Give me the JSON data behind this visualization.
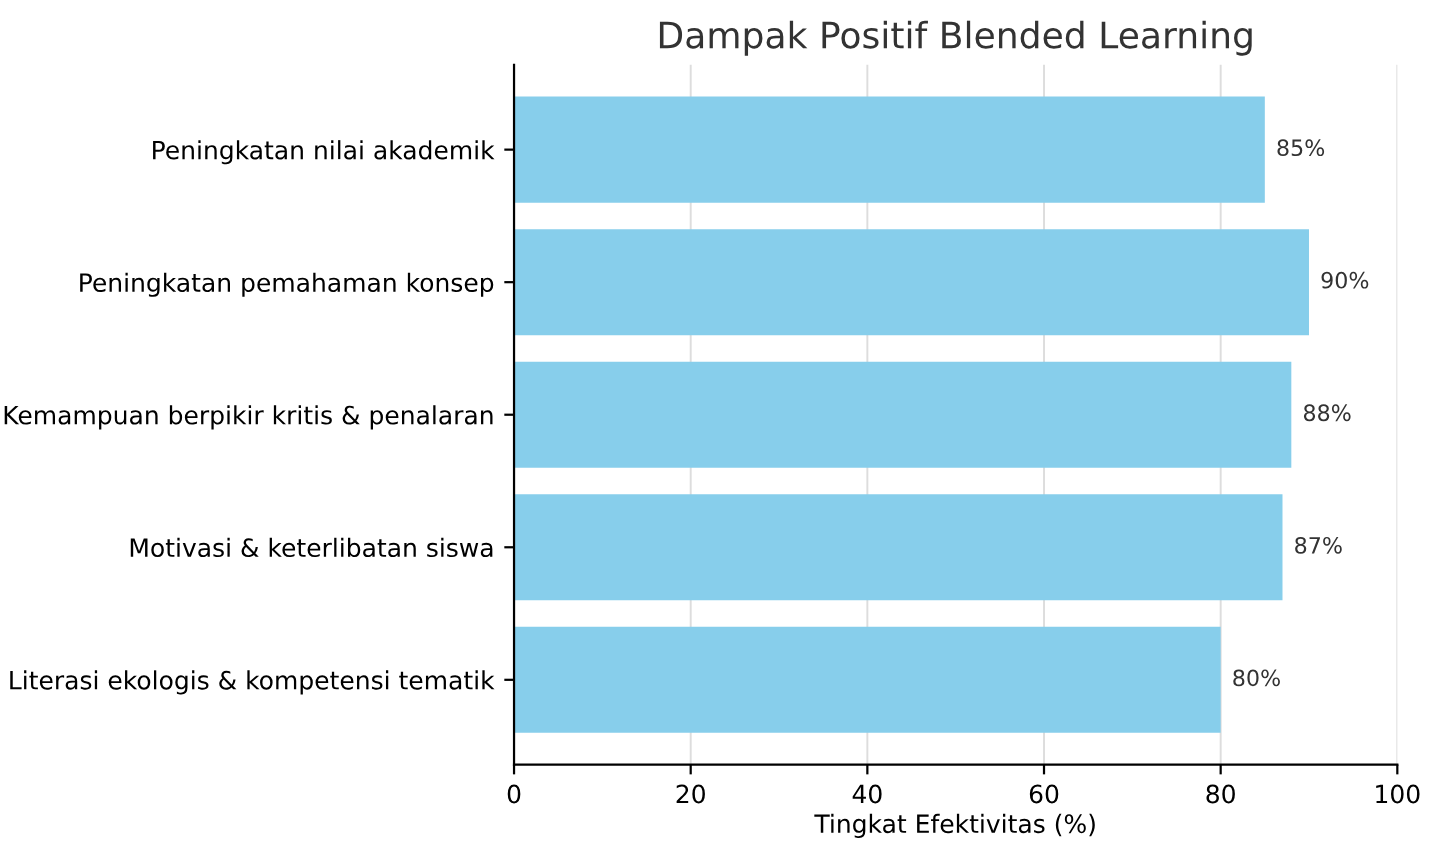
{
  "chart_data": {
    "type": "bar",
    "orientation": "horizontal",
    "title": "Dampak Positif Blended Learning",
    "xlabel": "Tingkat Efektivitas (%)",
    "categories": [
      "Peningkatan nilai akademik",
      "Peningkatan pemahaman konsep",
      "Kemampuan berpikir kritis & penalaran",
      "Motivasi & keterlibatan siswa",
      "Literasi ekologis & kompetensi tematik"
    ],
    "values": [
      85,
      90,
      88,
      87,
      80
    ],
    "value_labels": [
      "85%",
      "90%",
      "88%",
      "87%",
      "80%"
    ],
    "color": "#87ceeb",
    "xlim": [
      0,
      100
    ],
    "xticks": [
      0,
      20,
      40,
      60,
      80,
      100
    ],
    "grid": "x"
  }
}
